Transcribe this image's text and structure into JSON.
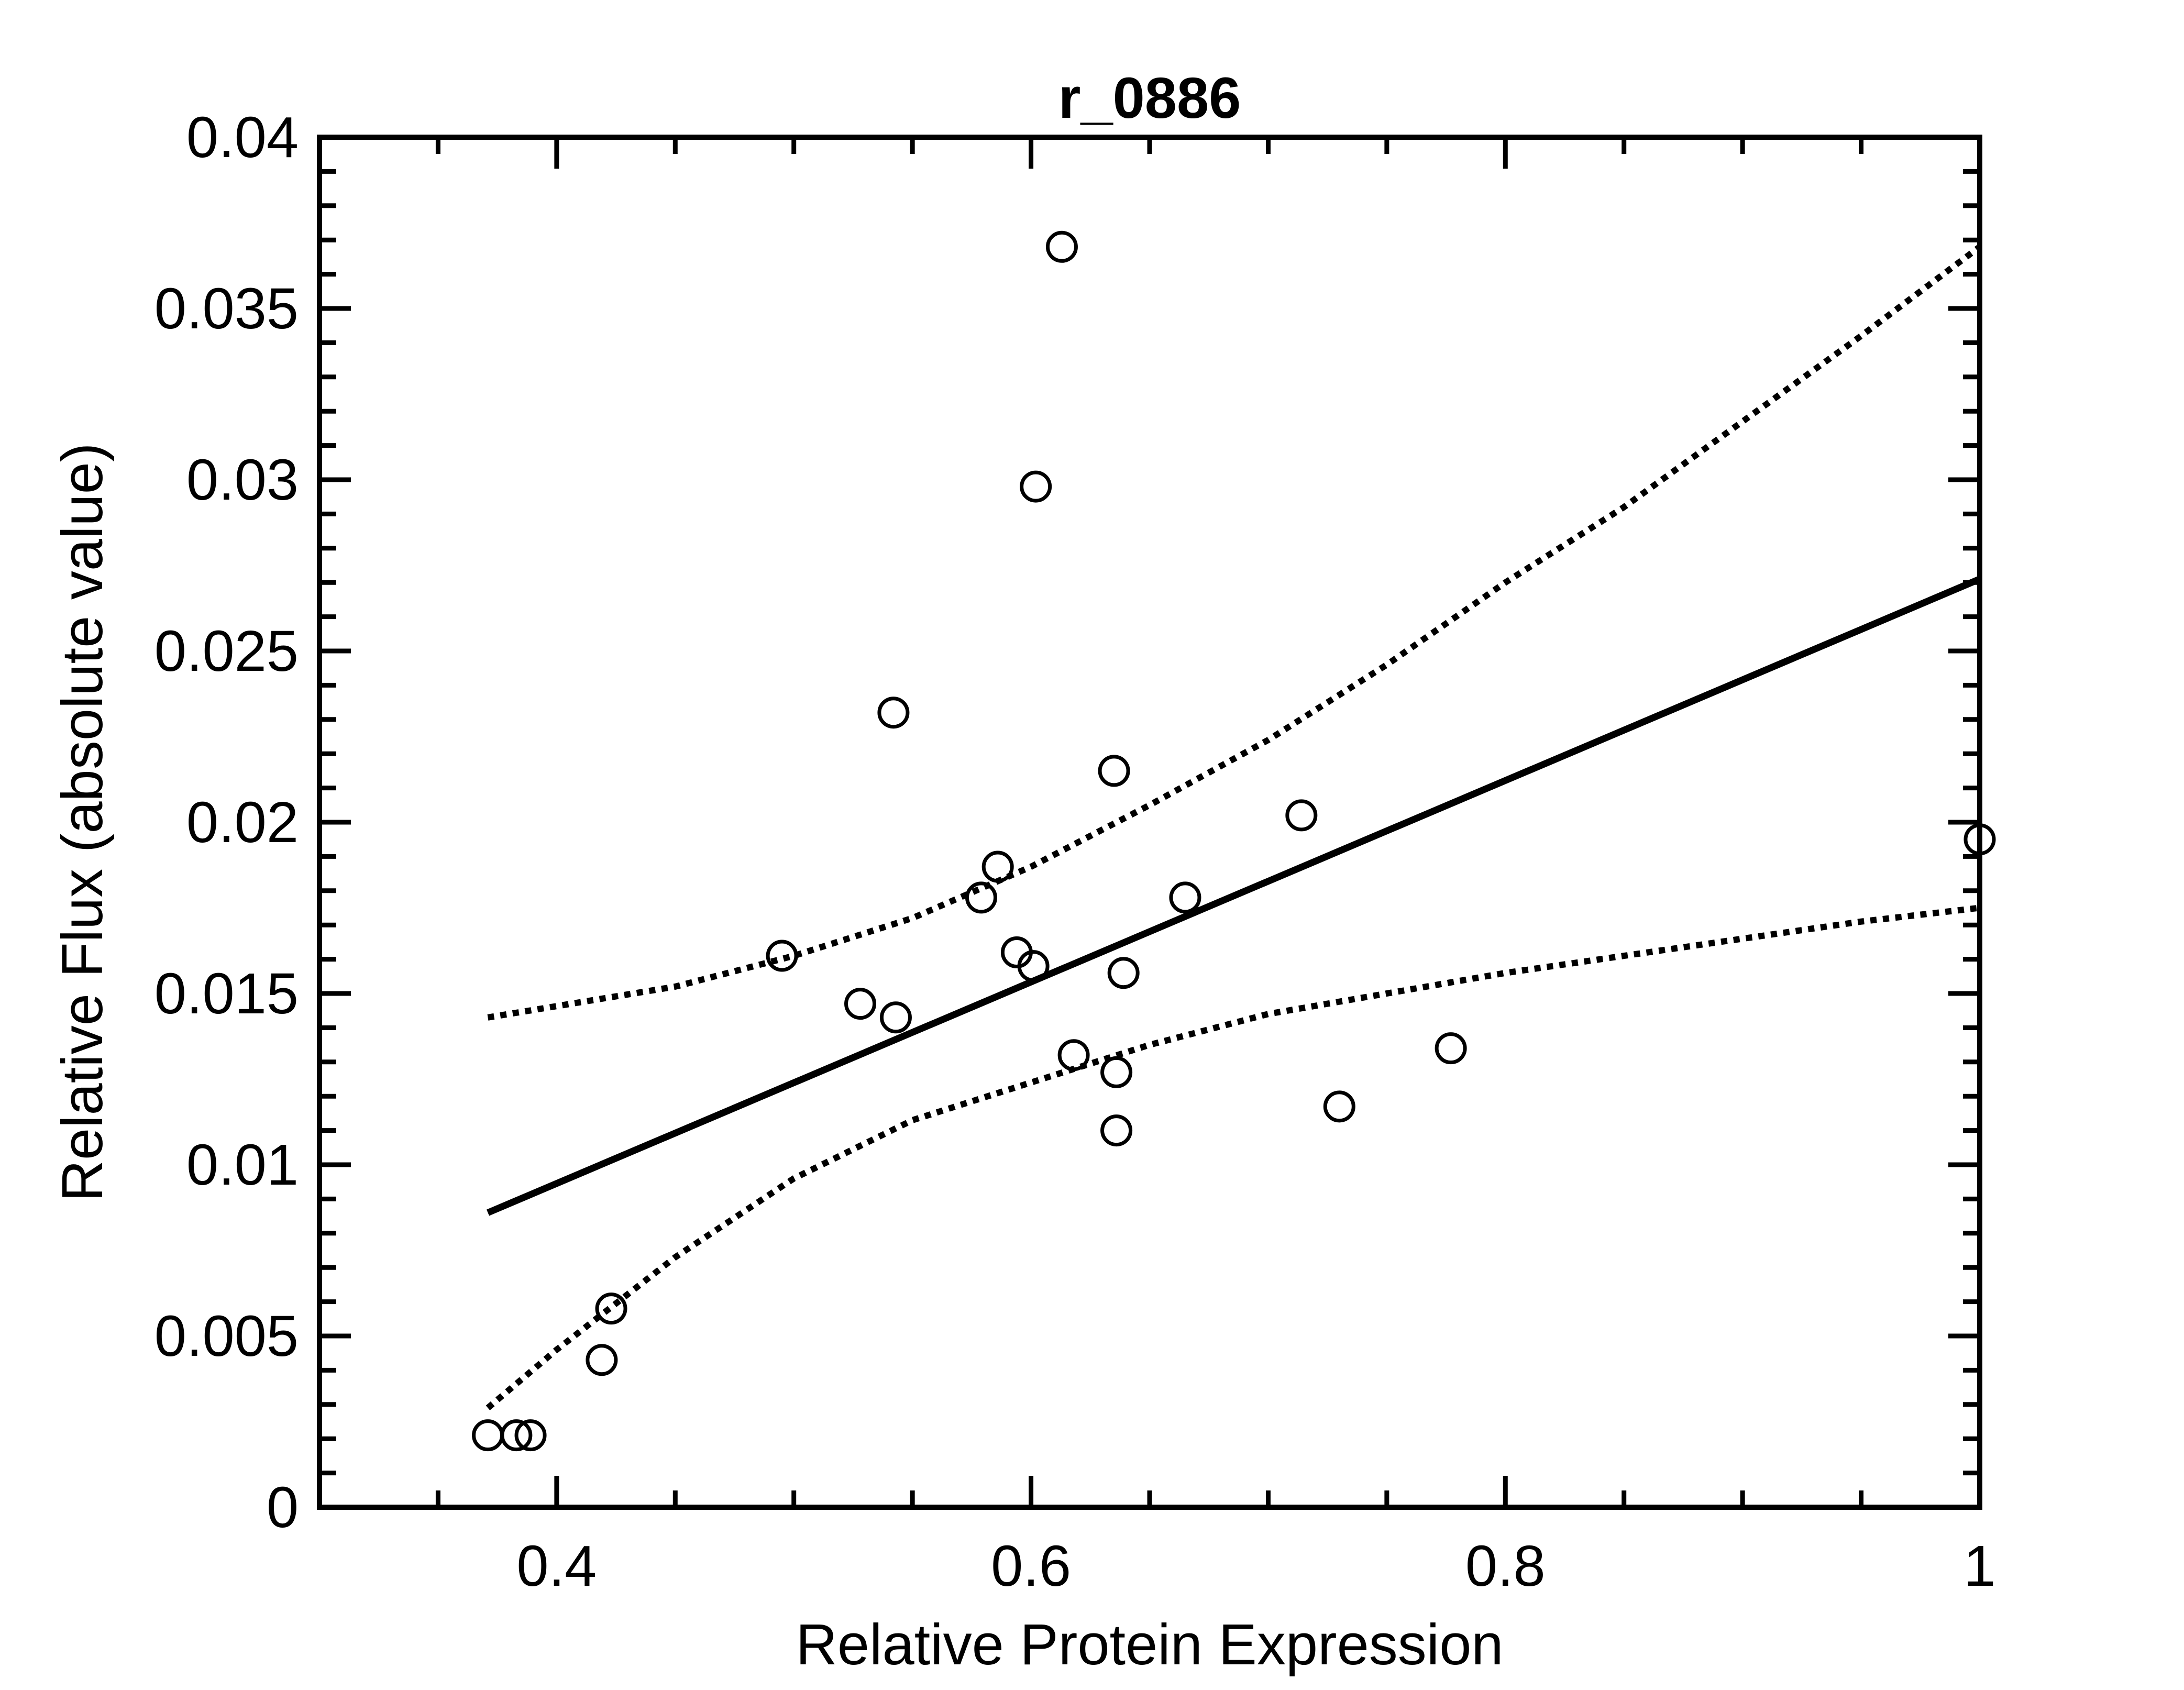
{
  "chart_data": {
    "type": "scatter",
    "title": "r_0886",
    "xlabel": "Relative Protein Expression",
    "ylabel": "Relative Flux (absolute value)",
    "xlim": [
      0.3,
      1.0
    ],
    "ylim": [
      0,
      0.04
    ],
    "x_ticks": [
      0.4,
      0.6,
      0.8,
      1.0
    ],
    "x_tick_labels": [
      "0.4",
      "0.6",
      "0.8",
      "1"
    ],
    "y_ticks": [
      0,
      0.005,
      0.01,
      0.015,
      0.02,
      0.025,
      0.03,
      0.035,
      0.04
    ],
    "y_tick_labels": [
      "0",
      "0.005",
      "0.01",
      "0.015",
      "0.02",
      "0.025",
      "0.03",
      "0.035",
      "0.04"
    ],
    "grid": false,
    "points": [
      {
        "x": 0.371,
        "y": 0.0021
      },
      {
        "x": 0.383,
        "y": 0.0021
      },
      {
        "x": 0.389,
        "y": 0.0021
      },
      {
        "x": 0.419,
        "y": 0.0043
      },
      {
        "x": 0.423,
        "y": 0.0058
      },
      {
        "x": 0.495,
        "y": 0.0161
      },
      {
        "x": 0.528,
        "y": 0.0147
      },
      {
        "x": 0.542,
        "y": 0.0232
      },
      {
        "x": 0.543,
        "y": 0.0143
      },
      {
        "x": 0.579,
        "y": 0.0178
      },
      {
        "x": 0.586,
        "y": 0.0187
      },
      {
        "x": 0.594,
        "y": 0.0162
      },
      {
        "x": 0.601,
        "y": 0.0158
      },
      {
        "x": 0.602,
        "y": 0.0298
      },
      {
        "x": 0.613,
        "y": 0.0368
      },
      {
        "x": 0.618,
        "y": 0.0132
      },
      {
        "x": 0.635,
        "y": 0.0215
      },
      {
        "x": 0.636,
        "y": 0.0127
      },
      {
        "x": 0.636,
        "y": 0.011
      },
      {
        "x": 0.639,
        "y": 0.0156
      },
      {
        "x": 0.665,
        "y": 0.0178
      },
      {
        "x": 0.714,
        "y": 0.0202
      },
      {
        "x": 0.73,
        "y": 0.0117
      },
      {
        "x": 0.777,
        "y": 0.0134
      },
      {
        "x": 1.0,
        "y": 0.0195
      }
    ],
    "fit_line": {
      "style": "solid",
      "x": [
        0.371,
        1.0
      ],
      "y": [
        0.0086,
        0.0271
      ]
    },
    "confidence_bands": [
      {
        "style": "dotted",
        "x": [
          0.371,
          0.45,
          0.5,
          0.55,
          0.6,
          0.65,
          0.7,
          0.75,
          0.8,
          0.85,
          0.9,
          0.95,
          1.0
        ],
        "y": [
          0.0143,
          0.0152,
          0.0161,
          0.0172,
          0.0187,
          0.0205,
          0.0224,
          0.0246,
          0.027,
          0.0292,
          0.0317,
          0.0342,
          0.0368
        ]
      },
      {
        "style": "dotted",
        "x": [
          0.371,
          0.4,
          0.45,
          0.5,
          0.55,
          0.6,
          0.65,
          0.7,
          0.75,
          0.8,
          0.85,
          0.9,
          0.95,
          1.0
        ],
        "y": [
          0.0029,
          0.0046,
          0.0073,
          0.0096,
          0.0113,
          0.0124,
          0.0135,
          0.0144,
          0.015,
          0.0156,
          0.0161,
          0.0166,
          0.0171,
          0.0175
        ]
      }
    ]
  }
}
